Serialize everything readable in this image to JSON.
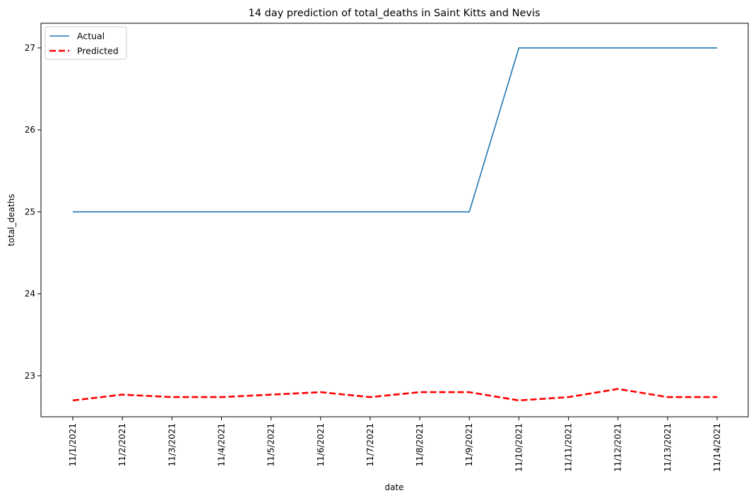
{
  "chart_data": {
    "type": "line",
    "title": "14 day prediction of total_deaths in Saint Kitts and Nevis",
    "xlabel": "date",
    "ylabel": "total_deaths",
    "categories": [
      "11/1/2021",
      "11/2/2021",
      "11/3/2021",
      "11/4/2021",
      "11/5/2021",
      "11/6/2021",
      "11/7/2021",
      "11/8/2021",
      "11/9/2021",
      "11/10/2021",
      "11/11/2021",
      "11/12/2021",
      "11/13/2021",
      "11/14/2021"
    ],
    "ylim": [
      22.5,
      27.3
    ],
    "yticks": [
      23,
      24,
      25,
      26,
      27
    ],
    "grid": false,
    "legend_position": "top-left",
    "series": [
      {
        "name": "Actual",
        "color": "#1f77b4",
        "style": "solid",
        "values": [
          25,
          25,
          25,
          25,
          25,
          25,
          25,
          25,
          25,
          27,
          27,
          27,
          27,
          27
        ]
      },
      {
        "name": "Predicted",
        "color": "#ff0000",
        "style": "dashed",
        "values": [
          22.7,
          22.77,
          22.74,
          22.74,
          22.77,
          22.8,
          22.74,
          22.8,
          22.8,
          22.7,
          22.74,
          22.84,
          22.74,
          22.74
        ]
      }
    ]
  }
}
